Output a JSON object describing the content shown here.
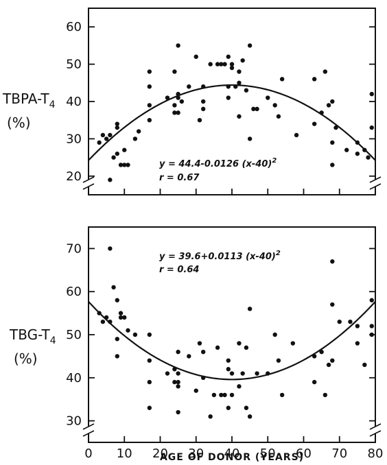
{
  "chart_data": [
    {
      "type": "scatter",
      "ylabel_main": "TBPA-T",
      "ylabel_sub": "4",
      "ylabel_unit": "(%)",
      "xlim": [
        0,
        80
      ],
      "ylim": [
        15,
        65
      ],
      "x_ticks": [
        0,
        10,
        20,
        30,
        40,
        50,
        60,
        70,
        80
      ],
      "y_ticks": [
        20,
        30,
        40,
        50,
        60
      ],
      "equation": "y = 44.4-0.0126 (x-40)",
      "equation_exp": "2",
      "r_text": "r = 0.67",
      "fit": {
        "a": 44.4,
        "b": -0.0126,
        "center": 40
      },
      "points": [
        [
          3,
          29
        ],
        [
          4,
          31
        ],
        [
          5,
          30
        ],
        [
          6,
          31
        ],
        [
          6,
          19
        ],
        [
          7,
          25
        ],
        [
          8,
          26
        ],
        [
          8,
          33
        ],
        [
          8,
          34
        ],
        [
          9,
          23
        ],
        [
          10,
          27
        ],
        [
          10,
          23
        ],
        [
          11,
          23
        ],
        [
          13,
          30
        ],
        [
          14,
          32
        ],
        [
          17,
          35
        ],
        [
          17,
          39
        ],
        [
          17,
          44
        ],
        [
          17,
          48
        ],
        [
          22,
          41
        ],
        [
          24,
          37
        ],
        [
          24,
          39
        ],
        [
          24,
          48
        ],
        [
          25,
          55
        ],
        [
          25,
          37
        ],
        [
          25,
          42
        ],
        [
          25,
          41
        ],
        [
          26,
          40
        ],
        [
          28,
          44
        ],
        [
          30,
          52
        ],
        [
          31,
          35
        ],
        [
          32,
          40
        ],
        [
          32,
          38
        ],
        [
          32,
          44
        ],
        [
          34,
          50
        ],
        [
          36,
          50
        ],
        [
          37,
          50
        ],
        [
          38,
          50
        ],
        [
          39,
          52
        ],
        [
          39,
          41
        ],
        [
          39,
          44
        ],
        [
          40,
          49
        ],
        [
          40,
          50
        ],
        [
          41,
          44
        ],
        [
          42,
          45
        ],
        [
          42,
          48
        ],
        [
          42,
          36
        ],
        [
          43,
          51
        ],
        [
          44,
          43
        ],
        [
          45,
          55
        ],
        [
          45,
          30
        ],
        [
          46,
          38
        ],
        [
          47,
          38
        ],
        [
          50,
          41
        ],
        [
          52,
          39
        ],
        [
          53,
          36
        ],
        [
          54,
          46
        ],
        [
          58,
          31
        ],
        [
          63,
          46
        ],
        [
          63,
          34
        ],
        [
          65,
          37
        ],
        [
          66,
          48
        ],
        [
          67,
          39
        ],
        [
          68,
          40
        ],
        [
          68,
          23
        ],
        [
          68,
          29
        ],
        [
          69,
          33
        ],
        [
          72,
          27
        ],
        [
          75,
          29
        ],
        [
          75,
          26
        ],
        [
          77,
          27
        ],
        [
          78,
          25
        ],
        [
          79,
          42
        ],
        [
          79,
          33
        ]
      ]
    },
    {
      "type": "scatter",
      "ylabel_main": "TBG-T",
      "ylabel_sub": "4",
      "ylabel_unit": "(%)",
      "xlabel": "AGE OF DONOR (YEARS)",
      "xlim": [
        0,
        80
      ],
      "ylim": [
        25,
        75
      ],
      "x_ticks": [
        0,
        10,
        20,
        30,
        40,
        50,
        60,
        70,
        80
      ],
      "y_ticks": [
        30,
        40,
        50,
        60,
        70
      ],
      "equation": "y = 39.6+0.0113 (x-40)",
      "equation_exp": "2",
      "r_text": "r = 0.64",
      "fit": {
        "a": 39.6,
        "b": 0.0113,
        "center": 40
      },
      "points": [
        [
          3,
          55
        ],
        [
          4,
          53
        ],
        [
          5,
          54
        ],
        [
          6,
          70
        ],
        [
          6,
          53
        ],
        [
          7,
          61
        ],
        [
          8,
          49
        ],
        [
          8,
          45
        ],
        [
          8,
          58
        ],
        [
          9,
          55
        ],
        [
          9,
          54
        ],
        [
          10,
          54
        ],
        [
          11,
          51
        ],
        [
          13,
          50
        ],
        [
          17,
          50
        ],
        [
          17,
          44
        ],
        [
          17,
          39
        ],
        [
          17,
          33
        ],
        [
          22,
          41
        ],
        [
          24,
          42
        ],
        [
          24,
          39
        ],
        [
          25,
          41
        ],
        [
          25,
          32
        ],
        [
          25,
          46
        ],
        [
          25,
          39
        ],
        [
          25,
          38
        ],
        [
          28,
          45
        ],
        [
          30,
          37
        ],
        [
          31,
          48
        ],
        [
          32,
          46
        ],
        [
          32,
          40
        ],
        [
          34,
          31
        ],
        [
          35,
          36
        ],
        [
          36,
          47
        ],
        [
          37,
          36
        ],
        [
          38,
          36
        ],
        [
          39,
          33
        ],
        [
          39,
          42
        ],
        [
          39,
          44
        ],
        [
          40,
          36
        ],
        [
          40,
          41
        ],
        [
          42,
          38
        ],
        [
          42,
          48
        ],
        [
          43,
          41
        ],
        [
          44,
          47
        ],
        [
          44,
          33
        ],
        [
          45,
          56
        ],
        [
          45,
          31
        ],
        [
          47,
          41
        ],
        [
          50,
          41
        ],
        [
          52,
          50
        ],
        [
          53,
          44
        ],
        [
          54,
          36
        ],
        [
          57,
          48
        ],
        [
          63,
          39
        ],
        [
          63,
          45
        ],
        [
          65,
          46
        ],
        [
          66,
          36
        ],
        [
          67,
          43
        ],
        [
          68,
          44
        ],
        [
          68,
          57
        ],
        [
          68,
          67
        ],
        [
          70,
          53
        ],
        [
          73,
          53
        ],
        [
          75,
          52
        ],
        [
          75,
          48
        ],
        [
          77,
          43
        ],
        [
          79,
          58
        ],
        [
          79,
          52
        ],
        [
          79,
          50
        ]
      ]
    }
  ]
}
